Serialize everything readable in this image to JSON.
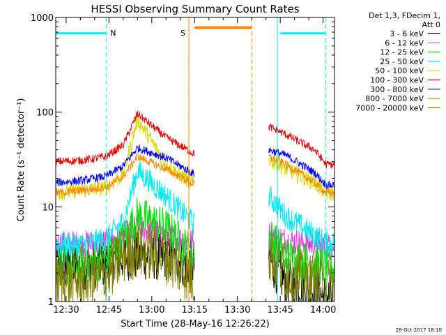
{
  "chart_data": {
    "type": "line",
    "title": "HESSI Observing Summary Count Rates",
    "xlabel": "Start Time (28-May-16 12:26:22)",
    "ylabel": "Count Rate (s⁻¹ detector⁻¹)",
    "y_scale": "log",
    "ylim": [
      1,
      1000
    ],
    "xlim": [
      "12:26:22",
      "14:04:00"
    ],
    "x_ticks": [
      "12:30",
      "12:45",
      "13:00",
      "13:15",
      "13:30",
      "13:45",
      "14:00"
    ],
    "y_ticks": [
      "1",
      "10",
      "100",
      "1000"
    ],
    "legend_title": [
      "Det 1,3, FDecim 1,",
      "Att 0"
    ],
    "legend_position": "right",
    "data_gap": [
      "13:15",
      "13:41"
    ],
    "series": [
      {
        "name": "3 - 6 keV",
        "color": "#000000",
        "baseline": [
          2.4,
          2.4,
          2.5,
          3.0,
          3.0,
          3.0,
          2.4,
          2.8,
          1.6,
          1.3,
          1.1
        ],
        "noise": 0.6
      },
      {
        "name": "6 - 12 keV",
        "color": "#e040e0",
        "baseline": [
          4.0,
          4.0,
          4.2,
          4.8,
          6.0,
          5.0,
          4.2,
          5.0,
          4.4,
          4.0,
          3.8
        ],
        "noise": 0.35
      },
      {
        "name": "12 - 25 keV",
        "color": "#00e000",
        "baseline": [
          2.4,
          2.4,
          2.8,
          4.5,
          8.0,
          6.0,
          3.0,
          5.0,
          3.0,
          2.5,
          2.3
        ],
        "noise": 0.5
      },
      {
        "name": "25 - 50 keV",
        "color": "#00e8f0",
        "baseline": [
          4.0,
          4.0,
          4.6,
          7.0,
          24.0,
          13.0,
          6.5,
          13.0,
          8.0,
          5.0,
          4.2
        ],
        "noise": 0.3
      },
      {
        "name": "50 - 100 keV",
        "color": "#d8d800",
        "baseline": [
          14.0,
          15.0,
          16.0,
          22.0,
          85.0,
          28.0,
          17.0,
          32.0,
          25.0,
          18.0,
          14.0
        ],
        "noise": 0.2
      },
      {
        "name": "100 - 300 keV",
        "color": "#e00000",
        "baseline": [
          30.0,
          31.0,
          34.0,
          45.0,
          96.0,
          54.0,
          36.0,
          70.0,
          58.0,
          40.0,
          28.0
        ],
        "noise": 0.1
      },
      {
        "name": "300 - 800 keV",
        "color": "#0000f0",
        "baseline": [
          18.0,
          19.0,
          21.0,
          27.0,
          42.0,
          33.0,
          22.0,
          40.0,
          35.0,
          23.0,
          17.0
        ],
        "noise": 0.1
      },
      {
        "name": "800 - 7000 keV",
        "color": "#ff8800",
        "baseline": [
          14.0,
          15.0,
          16.0,
          21.0,
          34.0,
          25.0,
          17.0,
          34.0,
          28.0,
          18.0,
          14.0
        ],
        "noise": 0.1
      },
      {
        "name": "7000 - 20000 keV",
        "color": "#808000",
        "baseline": [
          1.6,
          1.6,
          1.9,
          3.0,
          3.5,
          3.0,
          1.7,
          3.2,
          2.0,
          1.6,
          1.5
        ],
        "noise": 0.7
      }
    ],
    "baseline_times": [
      "12:26:22",
      "12:36",
      "12:44",
      "12:50",
      "12:55",
      "13:05",
      "13:15",
      "13:41",
      "13:47",
      "13:57",
      "14:01"
    ],
    "flags": [
      {
        "label": "N",
        "color": "#00e8f0",
        "style": "dashed",
        "times": [
          "12:44",
          "14:01"
        ]
      },
      {
        "label": "S",
        "color": "#ff8800",
        "style": "dashed",
        "times": [
          "13:13",
          "13:35"
        ]
      }
    ],
    "night_markers": {
      "color": "#00e8f0",
      "level": 680,
      "times": [
        "12:26:22",
        "12:44",
        "13:45",
        "14:01"
      ]
    },
    "saa_marker": {
      "color": "#ff8800",
      "level": 780,
      "times": [
        "13:15",
        "13:35"
      ]
    },
    "solid_lines": [
      {
        "color": "#00e8f0",
        "time": "12:26:22"
      },
      {
        "color": "#ff8800",
        "time": "13:13"
      },
      {
        "color": "#00e8f0",
        "time": "13:44"
      }
    ]
  },
  "footer": {
    "timestamp": "28-Oct-2017 18:10"
  }
}
